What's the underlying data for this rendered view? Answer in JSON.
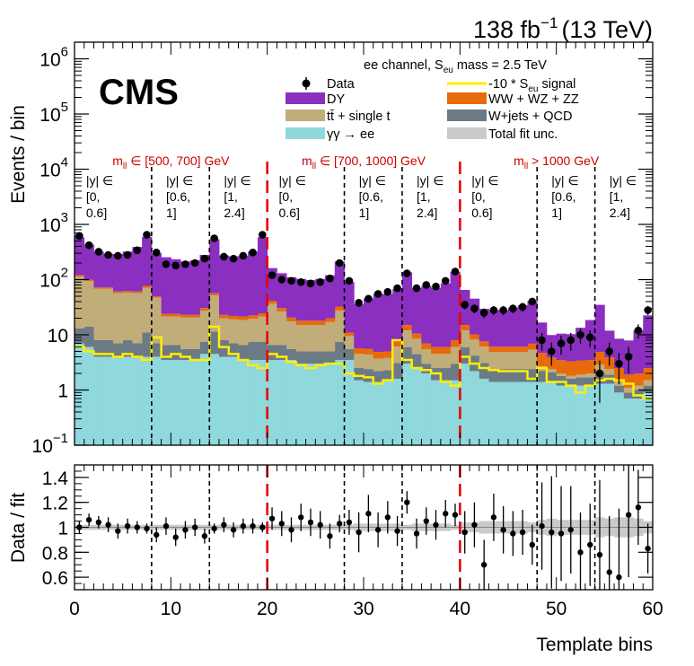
{
  "header": {
    "lumi": "138 fb",
    "lumi_sup": "−1",
    "energy": "(13 TeV)",
    "experiment": "CMS"
  },
  "chart_data": [
    {
      "type": "bar",
      "stacked": true,
      "log_y": true,
      "title": "ee channel, S",
      "title_sub": "eu",
      "title_rest": " mass = 2.5 TeV",
      "xlabel": "Template bins",
      "ylabel": "Events / bin",
      "xlim": [
        0,
        60
      ],
      "ylim": [
        0.1,
        2000000
      ],
      "x_ticks": [
        0,
        10,
        20,
        30,
        40,
        50,
        60
      ],
      "y_tick_labels": [
        {
          "value": 0.1,
          "base": "10",
          "exp": "−1"
        },
        {
          "value": 1,
          "base": "1",
          "exp": ""
        },
        {
          "value": 10,
          "base": "10",
          "exp": ""
        },
        {
          "value": 100,
          "base": "10",
          "exp": "2"
        },
        {
          "value": 1000,
          "base": "10",
          "exp": "3"
        },
        {
          "value": 10000,
          "base": "10",
          "exp": "4"
        },
        {
          "value": 100000,
          "base": "10",
          "exp": "5"
        },
        {
          "value": 1000000,
          "base": "10",
          "exp": "6"
        }
      ],
      "legend": [
        {
          "label": "Data",
          "kind": "marker",
          "color": "#000000"
        },
        {
          "label": "DY",
          "kind": "fill",
          "color": "#8a2fbf"
        },
        {
          "label": "tt̄ + single t",
          "kind": "fill",
          "color": "#c0ad7a"
        },
        {
          "label": "γγ → ee",
          "kind": "fill",
          "color": "#8fd8dc"
        },
        {
          "label": "-10 * S",
          "label_sub": "eu",
          "label_rest": " signal",
          "kind": "line",
          "color": "#ffee00"
        },
        {
          "label": "WW + WZ + ZZ",
          "kind": "fill",
          "color": "#e86a0c"
        },
        {
          "label": "W+jets + QCD",
          "kind": "fill",
          "color": "#6c7a86"
        },
        {
          "label": "Total fit unc.",
          "kind": "fill",
          "color": "#cacaca"
        }
      ],
      "mass_regions": [
        {
          "label": "m",
          "sub": "ll",
          "rest": " ∈ [500, 700] GeV",
          "x_start": 0,
          "x_end": 20
        },
        {
          "label": "m",
          "sub": "ll",
          "rest": " ∈ [700, 1000] GeV",
          "x_start": 20,
          "x_end": 40
        },
        {
          "label": "m",
          "sub": "ll",
          "rest": " > 1000 GeV",
          "x_start": 40,
          "x_end": 60
        }
      ],
      "mass_boundaries": [
        20,
        40
      ],
      "rapidity_boundaries": [
        8,
        14,
        28,
        34,
        48,
        54
      ],
      "rapidity_labels": [
        {
          "x": 1.2,
          "lines": [
            "|y| ∈",
            "[0,",
            "  0.6]"
          ]
        },
        {
          "x": 9.5,
          "lines": [
            "|y| ∈",
            "[0.6,",
            "  1]"
          ]
        },
        {
          "x": 15.5,
          "lines": [
            "|y| ∈",
            "[1,",
            "  2.4]"
          ]
        },
        {
          "x": 21.2,
          "lines": [
            "|y| ∈",
            "[0,",
            "  0.6]"
          ]
        },
        {
          "x": 29.5,
          "lines": [
            "|y| ∈",
            "[0.6,",
            "  1]"
          ]
        },
        {
          "x": 35.5,
          "lines": [
            "|y| ∈",
            "[1,",
            "  2.4]"
          ]
        },
        {
          "x": 41.2,
          "lines": [
            "|y| ∈",
            "[0,",
            "  0.6]"
          ]
        },
        {
          "x": 49.5,
          "lines": [
            "|y| ∈",
            "[0.6,",
            "  1]"
          ]
        },
        {
          "x": 55.5,
          "lines": [
            "|y| ∈",
            "[1,",
            "  2.4]"
          ]
        }
      ],
      "series": [
        {
          "name": "γγ → ee",
          "color": "#8fd8dc",
          "values": [
            7,
            6,
            4,
            4,
            4,
            4,
            4,
            4,
            4,
            3.5,
            3.5,
            3.5,
            3.5,
            4.5,
            4.5,
            4,
            4,
            3.5,
            3.5,
            3.5,
            3.5,
            3.5,
            3.5,
            3,
            3,
            3,
            3,
            3.5,
            3.5,
            1.5,
            1.4,
            1.4,
            1.5,
            1.6,
            3,
            2.5,
            2,
            1.5,
            1.5,
            1.5,
            3,
            2.2,
            1.6,
            1.4,
            1.4,
            1.4,
            1.4,
            1.4,
            1.4,
            1.4,
            1.2,
            1.2,
            1.2,
            1.2,
            1.3,
            1.3,
            0.9,
            0.7,
            0.7,
            0.9
          ]
        },
        {
          "name": "W+jets + QCD",
          "color": "#6c7a86",
          "values": [
            6,
            8,
            4,
            4,
            3,
            4,
            3,
            7,
            3,
            3,
            3,
            2,
            2,
            3,
            7,
            4,
            3,
            3,
            4,
            4,
            3,
            3,
            2,
            2,
            2,
            2,
            2,
            4,
            2,
            1,
            1,
            0.8,
            0.8,
            1.5,
            3,
            2,
            1,
            1,
            1,
            1.5,
            3,
            2,
            1.5,
            1,
            1,
            1,
            1,
            1,
            0.8,
            0.7,
            0.6,
            0.4,
            0.5,
            0.5,
            0.8,
            0.6,
            0.3,
            0.2,
            0.3,
            0.3
          ]
        },
        {
          "name": "tt̄ + single t",
          "color": "#c0ad7a",
          "values": [
            100,
            80,
            60,
            60,
            50,
            50,
            50,
            60,
            40,
            15,
            15,
            15,
            15,
            20,
            40,
            12,
            12,
            12,
            12,
            14,
            30,
            20,
            12,
            10,
            10,
            10,
            12,
            20,
            4,
            2,
            2,
            1.5,
            1.5,
            3,
            6,
            4,
            2.5,
            2,
            2,
            3,
            6,
            4,
            3,
            2.5,
            2.5,
            2.5,
            2.5,
            3,
            0.5,
            0.3,
            0.2,
            0.2,
            0.2,
            0.3,
            0.8,
            0.5,
            0.3,
            0.2,
            0.2,
            0.3
          ]
        },
        {
          "name": "WW + WZ + ZZ",
          "color": "#e86a0c",
          "values": [
            8,
            6,
            4,
            4,
            4,
            4,
            4,
            6,
            3,
            2.5,
            2.5,
            2.5,
            2.5,
            3,
            5,
            3,
            3,
            3,
            3,
            3,
            5,
            4,
            3,
            3,
            3,
            3,
            3,
            5,
            1.5,
            1.2,
            1.2,
            1.2,
            1.2,
            1.5,
            3,
            2,
            1.5,
            1.5,
            1.5,
            2,
            3,
            2,
            1.5,
            1.2,
            1.2,
            1.2,
            1.2,
            1.5,
            2,
            1.5,
            1.5,
            1.5,
            1.5,
            1.5,
            2,
            1.5,
            1,
            0.8,
            0.8,
            1
          ]
        },
        {
          "name": "DY",
          "color": "#8a2fbf",
          "values": [
            460,
            330,
            250,
            220,
            230,
            260,
            330,
            520,
            250,
            230,
            210,
            190,
            200,
            250,
            480,
            250,
            240,
            250,
            300,
            560,
            120,
            100,
            90,
            85,
            80,
            85,
            100,
            180,
            80,
            30,
            40,
            50,
            50,
            60,
            120,
            60,
            70,
            65,
            80,
            130,
            50,
            35,
            22,
            22,
            22,
            25,
            28,
            34,
            12,
            6,
            7,
            7,
            10,
            15,
            30,
            8,
            6,
            6,
            10,
            20
          ]
        }
      ],
      "data": {
        "name": "Data",
        "values": [
          620,
          420,
          320,
          280,
          270,
          280,
          340,
          650,
          310,
          190,
          180,
          190,
          200,
          240,
          560,
          260,
          240,
          270,
          310,
          650,
          120,
          100,
          95,
          90,
          85,
          90,
          105,
          200,
          95,
          38,
          45,
          55,
          60,
          70,
          130,
          70,
          80,
          75,
          95,
          140,
          35,
          30,
          25,
          28,
          28,
          30,
          32,
          40,
          8,
          5,
          7,
          8,
          10,
          9,
          2,
          5,
          3,
          4,
          12,
          28
        ]
      },
      "signal": {
        "name": "-10 * Seu signal",
        "color": "#ffee00",
        "values": [
          6,
          5,
          4.5,
          4.5,
          4,
          4.5,
          4,
          3.5,
          9,
          4,
          4.5,
          4,
          3.5,
          3.5,
          14,
          6,
          4.5,
          3.5,
          2.8,
          2.5,
          4.5,
          4,
          3.2,
          2.8,
          2.5,
          2.8,
          3,
          3,
          2,
          1.8,
          1.7,
          1.3,
          1.5,
          8,
          3.5,
          2.5,
          2.3,
          2,
          1.4,
          1.2,
          4,
          3,
          2.5,
          2.3,
          2.2,
          2.2,
          2.2,
          1.6,
          2.5,
          1.4,
          1.4,
          1.2,
          0.9,
          1.2,
          1.5,
          1.6,
          1.5,
          1.3,
          0.8,
          0.7
        ]
      }
    },
    {
      "type": "scatter",
      "xlabel": "Template bins",
      "ylabel": "Data / fit",
      "xlim": [
        0,
        60
      ],
      "ylim": [
        0.5,
        1.5
      ],
      "y_ticks": [
        0.6,
        0.8,
        1,
        1.2,
        1.4
      ],
      "y_tick_labels": [
        "0.6",
        "0.8",
        "1",
        "1.2",
        "1.4"
      ],
      "ratio": [
        1.0,
        1.06,
        1.04,
        1.02,
        0.97,
        1.01,
        1.0,
        0.99,
        0.94,
        1.01,
        0.92,
        0.98,
        1.0,
        0.93,
        0.99,
        1.02,
        0.98,
        1.01,
        1.01,
        1.0,
        1.07,
        1.03,
        0.98,
        1.08,
        1.04,
        1.02,
        0.93,
        1.03,
        1.04,
        0.96,
        1.11,
        0.98,
        1.08,
        0.97,
        1.2,
        0.95,
        1.05,
        1.02,
        1.11,
        1.1,
        0.96,
        1.02,
        0.7,
        1.08,
        0.98,
        0.95,
        0.96,
        0.86,
        1.01,
        0.96,
        0.95,
        0.98,
        0.8,
        0.86,
        0.78,
        0.64,
        0.6,
        1.1,
        1.16,
        0.83
      ],
      "ratio_err": [
        0.05,
        0.05,
        0.05,
        0.06,
        0.06,
        0.06,
        0.05,
        0.04,
        0.06,
        0.07,
        0.07,
        0.07,
        0.07,
        0.06,
        0.04,
        0.06,
        0.06,
        0.06,
        0.06,
        0.04,
        0.09,
        0.1,
        0.1,
        0.11,
        0.11,
        0.11,
        0.1,
        0.07,
        0.1,
        0.16,
        0.15,
        0.14,
        0.13,
        0.12,
        0.09,
        0.12,
        0.11,
        0.12,
        0.11,
        0.09,
        0.17,
        0.18,
        0.2,
        0.19,
        0.19,
        0.18,
        0.18,
        0.16,
        0.35,
        0.45,
        0.38,
        0.35,
        0.32,
        0.33,
        0.6,
        0.45,
        0.55,
        0.5,
        0.3,
        0.2
      ],
      "unc_band": [
        0.02,
        0.02,
        0.02,
        0.02,
        0.02,
        0.02,
        0.02,
        0.02,
        0.02,
        0.02,
        0.02,
        0.02,
        0.02,
        0.02,
        0.02,
        0.02,
        0.02,
        0.02,
        0.02,
        0.02,
        0.02,
        0.02,
        0.02,
        0.02,
        0.02,
        0.02,
        0.02,
        0.02,
        0.02,
        0.03,
        0.03,
        0.03,
        0.03,
        0.03,
        0.02,
        0.03,
        0.03,
        0.03,
        0.03,
        0.02,
        0.04,
        0.04,
        0.05,
        0.05,
        0.05,
        0.05,
        0.05,
        0.04,
        0.06,
        0.07,
        0.06,
        0.06,
        0.06,
        0.06,
        0.08,
        0.07,
        0.08,
        0.08,
        0.07,
        0.05
      ]
    }
  ]
}
